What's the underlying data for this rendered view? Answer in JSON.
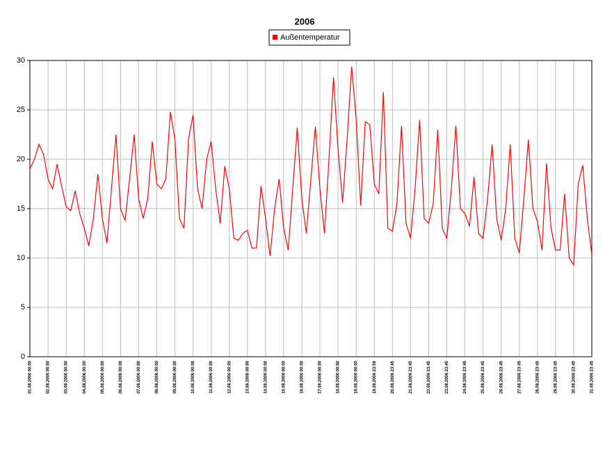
{
  "chart_data": {
    "type": "line",
    "title": "2006",
    "categories": [
      "01.08.2006 00:00",
      null,
      null,
      null,
      "02.08.2006 00:00",
      null,
      null,
      null,
      "03.08.2006 00:00",
      null,
      null,
      null,
      "04.08.2006 00:00",
      null,
      null,
      null,
      "05.08.2006 00:00",
      null,
      null,
      null,
      "06.08.2006 00:00",
      null,
      null,
      null,
      "07.08.2006 00:00",
      null,
      null,
      null,
      "08.08.2006 00:00",
      null,
      null,
      null,
      "09.08.2006 00:00",
      null,
      null,
      null,
      "10.08.2006 00:00",
      null,
      null,
      null,
      "11.08.2006 00:00",
      null,
      null,
      null,
      "12.08.2006 00:00",
      null,
      null,
      null,
      "13.08.2006 00:00",
      null,
      null,
      null,
      "14.08.2006 00:00",
      null,
      null,
      null,
      "15.08.2006 00:00",
      null,
      null,
      null,
      "16.08.2006 00:00",
      null,
      null,
      null,
      "17.08.2006 00:00",
      null,
      null,
      null,
      "18.08.2006 00:00",
      null,
      null,
      null,
      "19.08.2006 00:00",
      null,
      null,
      null,
      "19.08.2006 23:59",
      null,
      null,
      null,
      "20.08.2006 23:45",
      null,
      null,
      null,
      "21.08.2006 23:45",
      null,
      null,
      null,
      "22.08.2006 23:45",
      null,
      null,
      null,
      "23.08.2006 23:45",
      null,
      null,
      null,
      "24.08.2006 23:45",
      null,
      null,
      null,
      "25.08.2006 23:45",
      null,
      null,
      null,
      "26.08.2006 23:45",
      null,
      null,
      null,
      "27.08.2006 23:45",
      null,
      null,
      null,
      "28.08.2006 23:45",
      null,
      null,
      null,
      "29.08.2006 23:45",
      null,
      null,
      null,
      "30.08.2006 23:45",
      null,
      null,
      null,
      "31.08.2006 23:45"
    ],
    "series": [
      {
        "name": "Außentemperatur",
        "color": "#ff0000",
        "values": [
          19,
          20,
          21.5,
          20.5,
          18,
          17,
          19.5,
          17.3,
          15.2,
          14.8,
          16.8,
          14.5,
          13,
          11.2,
          14,
          18.5,
          14,
          11.5,
          17,
          22.5,
          15,
          13.8,
          18,
          22.5,
          16,
          14,
          16,
          21.8,
          17.5,
          17,
          18,
          24.8,
          22,
          14,
          13,
          22,
          24.5,
          17,
          15,
          20,
          21.8,
          17,
          13.5,
          19.3,
          17,
          12,
          11.8,
          12.5,
          12.8,
          11,
          11,
          17.3,
          14,
          10.2,
          15,
          18,
          13,
          10.8,
          17,
          23.2,
          16,
          12.5,
          18,
          23.3,
          17,
          12.5,
          20,
          28.3,
          21,
          15.6,
          22,
          29.4,
          24,
          15.3,
          23.8,
          23.5,
          17.5,
          16.5,
          26.8,
          13,
          12.7,
          15.5,
          23.4,
          13.5,
          12,
          17,
          24,
          14,
          13.5,
          15.5,
          23,
          13,
          12,
          17,
          23.4,
          15,
          14.5,
          13.2,
          18.2,
          12.5,
          12,
          16,
          21.5,
          14,
          11.8,
          15,
          21.5,
          12,
          10.5,
          16,
          22,
          15,
          13.7,
          10.8,
          19.6,
          13,
          10.8,
          10.8,
          16.5,
          10,
          9.3,
          17.5,
          19.4,
          14,
          10.3
        ]
      }
    ],
    "ylim": [
      0,
      30
    ],
    "yticks": [
      0,
      5,
      10,
      15,
      20,
      25,
      30
    ],
    "grid": true
  }
}
